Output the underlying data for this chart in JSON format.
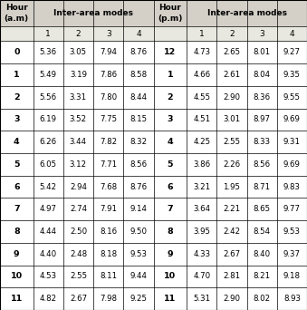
{
  "am_hours": [
    "0",
    "1",
    "2",
    "3",
    "4",
    "5",
    "6",
    "7",
    "8",
    "9",
    "10",
    "11"
  ],
  "am_data": [
    [
      5.36,
      3.05,
      7.94,
      8.76
    ],
    [
      5.49,
      3.19,
      7.86,
      8.58
    ],
    [
      5.56,
      3.31,
      7.8,
      8.44
    ],
    [
      6.19,
      3.52,
      7.75,
      8.15
    ],
    [
      6.26,
      3.44,
      7.82,
      8.32
    ],
    [
      6.05,
      3.12,
      7.71,
      8.56
    ],
    [
      5.42,
      2.94,
      7.68,
      8.76
    ],
    [
      4.97,
      2.74,
      7.91,
      9.14
    ],
    [
      4.44,
      2.5,
      8.16,
      9.5
    ],
    [
      4.4,
      2.48,
      8.18,
      9.53
    ],
    [
      4.53,
      2.55,
      8.11,
      9.44
    ],
    [
      4.82,
      2.67,
      7.98,
      9.25
    ]
  ],
  "pm_hours": [
    "12",
    "1",
    "2",
    "3",
    "4",
    "5",
    "6",
    "7",
    "8",
    "9",
    "10",
    "11"
  ],
  "pm_data": [
    [
      4.73,
      2.65,
      8.01,
      9.27
    ],
    [
      4.66,
      2.61,
      8.04,
      9.35
    ],
    [
      4.55,
      2.9,
      8.36,
      9.55
    ],
    [
      4.51,
      3.01,
      8.97,
      9.69
    ],
    [
      4.25,
      2.55,
      8.33,
      9.31
    ],
    [
      3.86,
      2.26,
      8.56,
      9.69
    ],
    [
      3.21,
      1.95,
      8.71,
      9.83
    ],
    [
      3.64,
      2.21,
      8.65,
      9.77
    ],
    [
      3.95,
      2.42,
      8.54,
      9.53
    ],
    [
      4.33,
      2.67,
      8.4,
      9.37
    ],
    [
      4.7,
      2.81,
      8.21,
      9.18
    ],
    [
      5.31,
      2.9,
      8.02,
      8.93
    ]
  ],
  "bg_header": "#d4d0c8",
  "bg_white": "#ffffff",
  "line_color": "#000000",
  "text_color": "#000000",
  "figsize": [
    3.39,
    3.42
  ],
  "dpi": 100
}
